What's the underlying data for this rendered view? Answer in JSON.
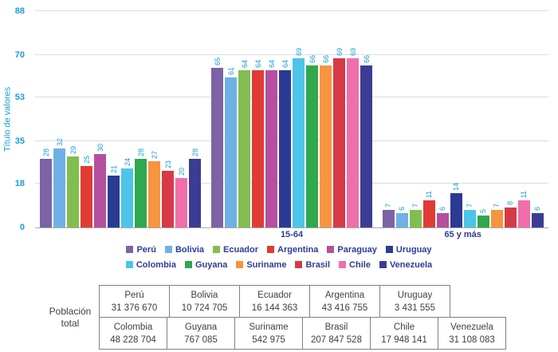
{
  "chart_data": {
    "type": "bar",
    "title": "",
    "xlabel": "",
    "ylabel": "Título de valores",
    "ylim": [
      0,
      88
    ],
    "yticks": [
      0,
      18,
      35,
      53,
      70,
      88
    ],
    "grid": true,
    "legend_position": "bottom",
    "categories": [
      "",
      "15-64",
      "65 y más"
    ],
    "series": [
      {
        "name": "Perú",
        "color": "#7B63A5",
        "values": [
          28,
          65,
          7
        ]
      },
      {
        "name": "Bolivia",
        "color": "#6FB1E4",
        "values": [
          32,
          61,
          6
        ]
      },
      {
        "name": "Ecuador",
        "color": "#82BE4F",
        "values": [
          29,
          64,
          7
        ]
      },
      {
        "name": "Argentina",
        "color": "#E13B35",
        "values": [
          25,
          64,
          11
        ]
      },
      {
        "name": "Paraguay",
        "color": "#B4509E",
        "values": [
          30,
          64,
          6
        ]
      },
      {
        "name": "Uruguay",
        "color": "#2B3A94",
        "values": [
          21,
          64,
          14
        ]
      },
      {
        "name": "Colombia",
        "color": "#4EC4E9",
        "values": [
          24,
          69,
          7
        ]
      },
      {
        "name": "Guyana",
        "color": "#2FA84E",
        "values": [
          28,
          66,
          5
        ]
      },
      {
        "name": "Suriname",
        "color": "#F6953F",
        "values": [
          27,
          66,
          7
        ]
      },
      {
        "name": "Brasil",
        "color": "#D63A47",
        "values": [
          23,
          69,
          8
        ]
      },
      {
        "name": "Chile",
        "color": "#F06FA9",
        "values": [
          20,
          69,
          11
        ]
      },
      {
        "name": "Venezuela",
        "color": "#3C3C94",
        "values": [
          28,
          66,
          6
        ]
      }
    ]
  },
  "population_table": {
    "label": "Población total",
    "rows": [
      [
        {
          "country": "Perú",
          "value": "31 376 670"
        },
        {
          "country": "Bolivia",
          "value": "10 724 705"
        },
        {
          "country": "Ecuador",
          "value": "16 144 363"
        },
        {
          "country": "Argentina",
          "value": "43 416 755"
        },
        {
          "country": "Uruguay",
          "value": "3 431 555"
        }
      ],
      [
        {
          "country": "Colombia",
          "value": "48 228 704"
        },
        {
          "country": "Guyana",
          "value": "767 085"
        },
        {
          "country": "Suriname",
          "value": "542 975"
        },
        {
          "country": "Brasil",
          "value": "207 847 528"
        },
        {
          "country": "Chile",
          "value": "17 948 141"
        },
        {
          "country": "Venezuela",
          "value": "31 108 083"
        }
      ]
    ]
  }
}
